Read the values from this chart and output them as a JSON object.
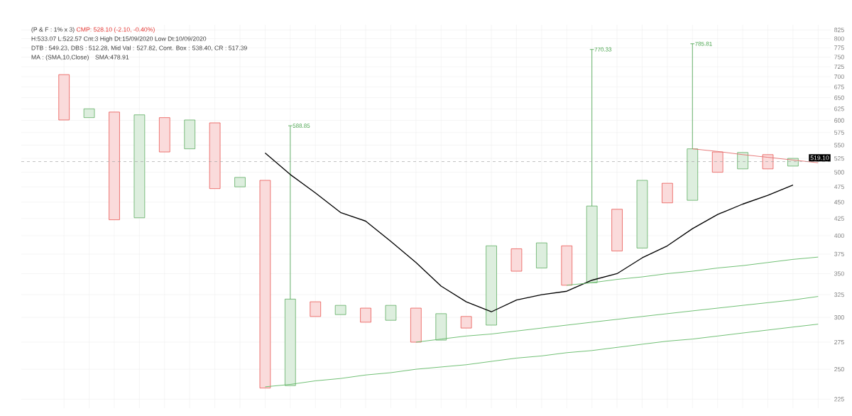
{
  "chart_data": {
    "type": "bar",
    "title": "(P & F : 1% x 3)",
    "subtitle": "CMP: 528.10 (-2.10, -0.40%)",
    "annotations": [
      "H:533.07 L:522.57 Cnt:3 High Dt:15/09/2020 Low Dt:10/09/2020",
      "DTB : 549.23, DBS : 512.28, Mid Val : 527.82, Cont. Box : 538.40, CR : 517.39",
      "MA : (SMA,10,Close)",
      "SMA:478.91",
      "588.85",
      "770.33",
      "785.81"
    ],
    "categories": [
      null,
      null,
      null,
      null,
      null,
      null,
      null,
      null,
      null,
      null,
      null,
      null,
      null,
      null,
      null,
      null,
      null,
      null,
      null,
      null,
      null,
      null,
      null,
      null,
      null,
      null,
      null,
      null,
      null,
      null,
      null
    ],
    "series": [
      {
        "color": "#e53935",
        "values": [
          104,
          null,
          195,
          null,
          69,
          null,
          123,
          null,
          252,
          null,
          16,
          null,
          15,
          null,
          35,
          null,
          12,
          null,
          29,
          null,
          50,
          null,
          60,
          null,
          32,
          null,
          37,
          null,
          26,
          null,
          null
        ],
        "base": [
          601,
          null,
          423,
          null,
          537,
          null,
          472,
          null,
          234,
          null,
          301,
          null,
          295,
          null,
          275,
          null,
          289,
          null,
          353,
          null,
          336,
          null,
          379,
          null,
          449,
          null,
          500,
          null,
          506,
          null,
          null
        ]
      },
      {
        "color": "#43a047",
        "values": [
          null,
          19,
          null,
          186,
          null,
          58,
          null,
          16,
          null,
          84,
          null,
          10,
          null,
          16,
          null,
          27,
          null,
          94,
          null,
          33,
          null,
          105,
          null,
          103,
          null,
          90,
          null,
          30,
          null,
          14,
          null
        ],
        "base": [
          null,
          606,
          null,
          426,
          null,
          543,
          null,
          475,
          null,
          236,
          null,
          303,
          null,
          297,
          null,
          277,
          null,
          292,
          null,
          357,
          null,
          339,
          null,
          383,
          null,
          453,
          null,
          506,
          null,
          511,
          null
        ],
        "errors": [
          null,
          null,
          null,
          null,
          null,
          null,
          null,
          null,
          null,
          [
            320,
            588.85
          ],
          null,
          null,
          null,
          null,
          null,
          null,
          null,
          null,
          null,
          null,
          null,
          [
            444,
            770.33
          ],
          null,
          null,
          null,
          [
            543,
            785.81
          ],
          null,
          null,
          null,
          null,
          null
        ]
      },
      {
        "type": "line",
        "color": "#000000",
        "values": [
          null,
          null,
          null,
          null,
          null,
          null,
          null,
          null,
          535,
          496,
          465,
          434,
          421,
          392,
          364,
          335,
          317,
          306,
          319,
          325,
          329,
          342,
          350,
          370,
          386,
          410,
          431,
          447,
          461,
          478,
          null
        ]
      },
      {
        "type": "line",
        "color": "#66bb6a",
        "values": [
          null,
          null,
          null,
          null,
          null,
          null,
          null,
          null,
          235,
          237,
          240,
          242,
          245,
          247,
          250,
          252,
          254,
          257,
          260,
          262,
          265,
          267,
          270,
          273,
          276,
          278,
          281,
          284,
          287,
          290,
          293
        ]
      },
      {
        "type": "line",
        "color": "#66bb6a",
        "values": [
          null,
          null,
          null,
          null,
          null,
          null,
          null,
          null,
          null,
          null,
          null,
          null,
          null,
          null,
          275,
          278,
          281,
          283,
          286,
          289,
          292,
          295,
          298,
          301,
          304,
          307,
          310,
          313,
          316,
          319,
          323
        ]
      },
      {
        "type": "line",
        "color": "#66bb6a",
        "values": [
          null,
          null,
          null,
          null,
          null,
          null,
          null,
          null,
          null,
          null,
          null,
          null,
          null,
          null,
          null,
          null,
          null,
          null,
          null,
          null,
          336,
          339,
          343,
          346,
          350,
          353,
          357,
          360,
          364,
          368,
          371
        ]
      },
      {
        "type": "line",
        "color": "#e57373",
        "values": [
          null,
          null,
          null,
          null,
          null,
          null,
          null,
          null,
          null,
          null,
          null,
          null,
          null,
          null,
          null,
          null,
          null,
          null,
          null,
          null,
          null,
          null,
          null,
          null,
          null,
          543,
          538,
          532,
          527,
          522,
          517
        ]
      }
    ],
    "ref_lines": [
      {
        "axis": "y",
        "value": 519.1,
        "label": "519.10",
        "color": "#9e9e9e",
        "line_style": "dashed"
      }
    ],
    "ylim": [
      218,
      840
    ],
    "yticks": [
      225,
      250,
      275,
      300,
      325,
      350,
      375,
      400,
      425,
      450,
      475,
      500,
      525,
      550,
      575,
      600,
      625,
      650,
      675,
      700,
      725,
      750,
      775,
      800,
      825
    ],
    "log": "y",
    "grid": true,
    "tick_labels": "y"
  }
}
